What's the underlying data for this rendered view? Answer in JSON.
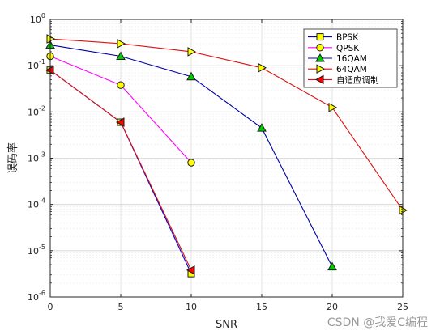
{
  "chart_data": {
    "type": "line",
    "xlabel": "SNR",
    "ylabel": "误码率",
    "xlim": [
      0,
      25
    ],
    "ylim": [
      1e-06,
      1
    ],
    "yscale": "log",
    "grid": true,
    "legend_position": "top-right",
    "x_ticks": [
      0,
      5,
      10,
      15,
      20,
      25
    ],
    "y_ticks": [
      {
        "value": 1,
        "base": "10",
        "exp": "0"
      },
      {
        "value": 0.1,
        "base": "10",
        "exp": "-1"
      },
      {
        "value": 0.01,
        "base": "10",
        "exp": "-2"
      },
      {
        "value": 0.001,
        "base": "10",
        "exp": "-3"
      },
      {
        "value": 0.0001,
        "base": "10",
        "exp": "-4"
      },
      {
        "value": 1e-05,
        "base": "10",
        "exp": "-5"
      },
      {
        "value": 1e-06,
        "base": "10",
        "exp": "-6"
      }
    ],
    "series": [
      {
        "name": "BPSK",
        "line_color": "#0000cc",
        "marker": "square",
        "marker_fill": "#ffff00",
        "x": [
          0,
          5,
          10
        ],
        "y": [
          0.08,
          0.006,
          3.2e-06
        ]
      },
      {
        "name": "QPSK",
        "line_color": "#ff00ff",
        "marker": "circle",
        "marker_fill": "#ffff00",
        "x": [
          0,
          5,
          10
        ],
        "y": [
          0.16,
          0.038,
          0.0008
        ]
      },
      {
        "name": "16QAM",
        "line_color": "#0000aa",
        "marker": "triangle-up",
        "marker_fill": "#00cc00",
        "x": [
          0,
          5,
          10,
          15,
          20
        ],
        "y": [
          0.28,
          0.16,
          0.058,
          0.0045,
          4.5e-06
        ]
      },
      {
        "name": "64QAM",
        "line_color": "#dd1111",
        "marker": "triangle-right",
        "marker_fill": "#ffff00",
        "x": [
          0,
          5,
          10,
          15,
          20,
          25
        ],
        "y": [
          0.38,
          0.3,
          0.2,
          0.09,
          0.0125,
          7.5e-05
        ]
      },
      {
        "name": "自适应调制",
        "line_color": "#dd1111",
        "marker": "triangle-left",
        "marker_fill": "#ff0000",
        "x": [
          0,
          5,
          10
        ],
        "y": [
          0.08,
          0.006,
          3.8e-06
        ]
      }
    ]
  },
  "watermark": "CSDN @我爱C编程"
}
